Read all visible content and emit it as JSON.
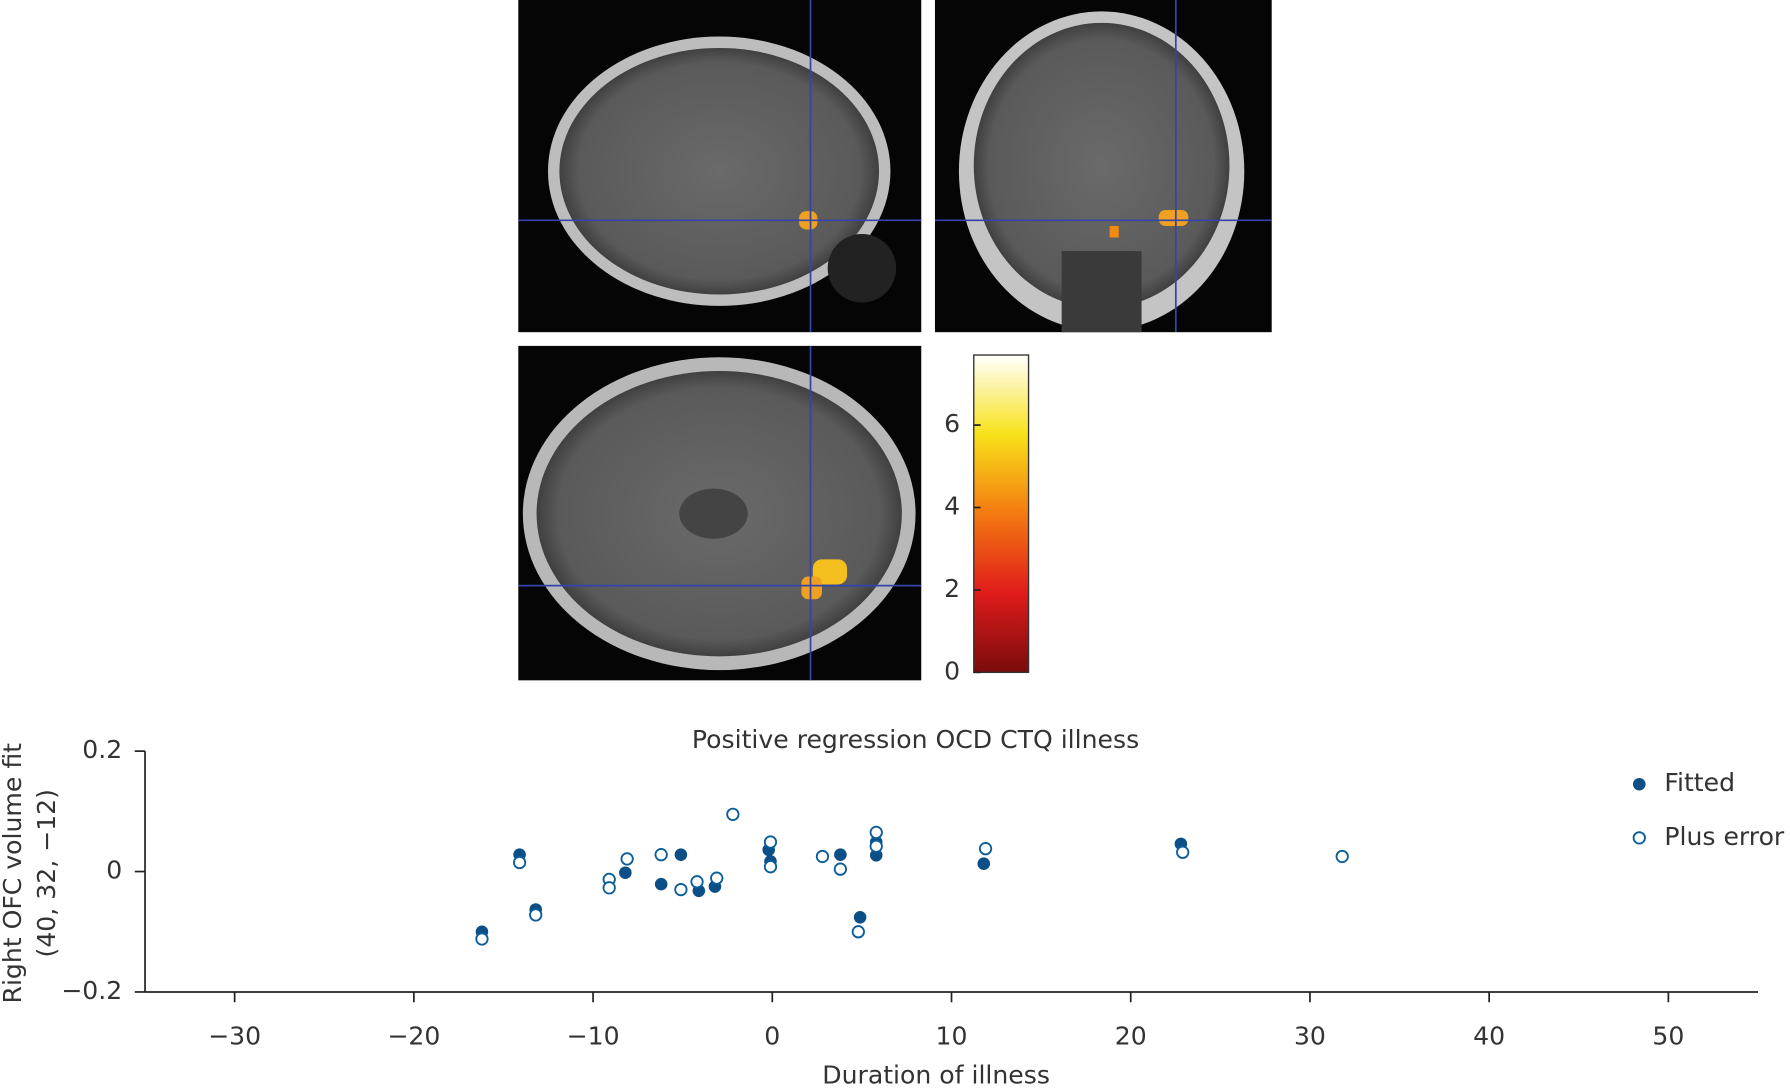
{
  "chart_data": [
    {
      "type": "scatter",
      "title": "Positive regression OCD CTQ illness",
      "xlabel": "Duration of illness",
      "ylabel": [
        "Right OFC volume fit",
        "(40, 32, −12)"
      ],
      "xlim": [
        -35,
        55
      ],
      "ylim": [
        -0.2,
        0.2
      ],
      "xticks": [
        {
          "value": -30,
          "label": "−30"
        },
        {
          "value": -20,
          "label": "−20"
        },
        {
          "value": -10,
          "label": "−10"
        },
        0,
        10,
        20,
        30,
        40,
        50
      ],
      "yticks": [
        {
          "value": -0.2,
          "label": "−0.2"
        },
        0,
        0.2
      ],
      "legend": "top-right",
      "series": [
        {
          "name": "Fitted",
          "color": "#0b4f86",
          "marker": "filled",
          "x": [
            -16.2,
            -14.1,
            -13.2,
            -8.2,
            -6.2,
            -5.1,
            -4.1,
            -3.2,
            -0.2,
            -0.1,
            3.8,
            4.9,
            5.8,
            5.8,
            11.8,
            22.8
          ],
          "values": [
            -0.1,
            0.028,
            -0.063,
            -0.002,
            -0.021,
            0.028,
            -0.032,
            -0.025,
            0.036,
            0.017,
            0.028,
            -0.076,
            0.049,
            0.027,
            0.013,
            0.046
          ]
        },
        {
          "name": "Plus error",
          "color": "#0b5d9a",
          "marker": "open",
          "x": [
            -16.2,
            -14.1,
            -13.2,
            -9.1,
            -9.1,
            -8.1,
            -6.2,
            -5.1,
            -4.2,
            -3.1,
            -2.2,
            -0.1,
            -0.1,
            2.8,
            3.8,
            4.8,
            5.8,
            5.8,
            11.9,
            22.9,
            31.8
          ],
          "values": [
            -0.112,
            0.015,
            -0.072,
            -0.013,
            -0.027,
            0.021,
            0.028,
            -0.03,
            -0.017,
            -0.011,
            0.095,
            0.049,
            0.008,
            0.025,
            0.004,
            -0.1,
            0.065,
            0.042,
            0.038,
            0.032,
            0.025
          ]
        }
      ]
    },
    {
      "type": "colorbar",
      "ylim": [
        0,
        7.7
      ],
      "yticks": [
        0,
        2,
        4,
        6
      ],
      "colors": [
        "#7a0c0c",
        "#e01b1b",
        "#f47a10",
        "#f8e21a",
        "#ffffff"
      ]
    }
  ]
}
